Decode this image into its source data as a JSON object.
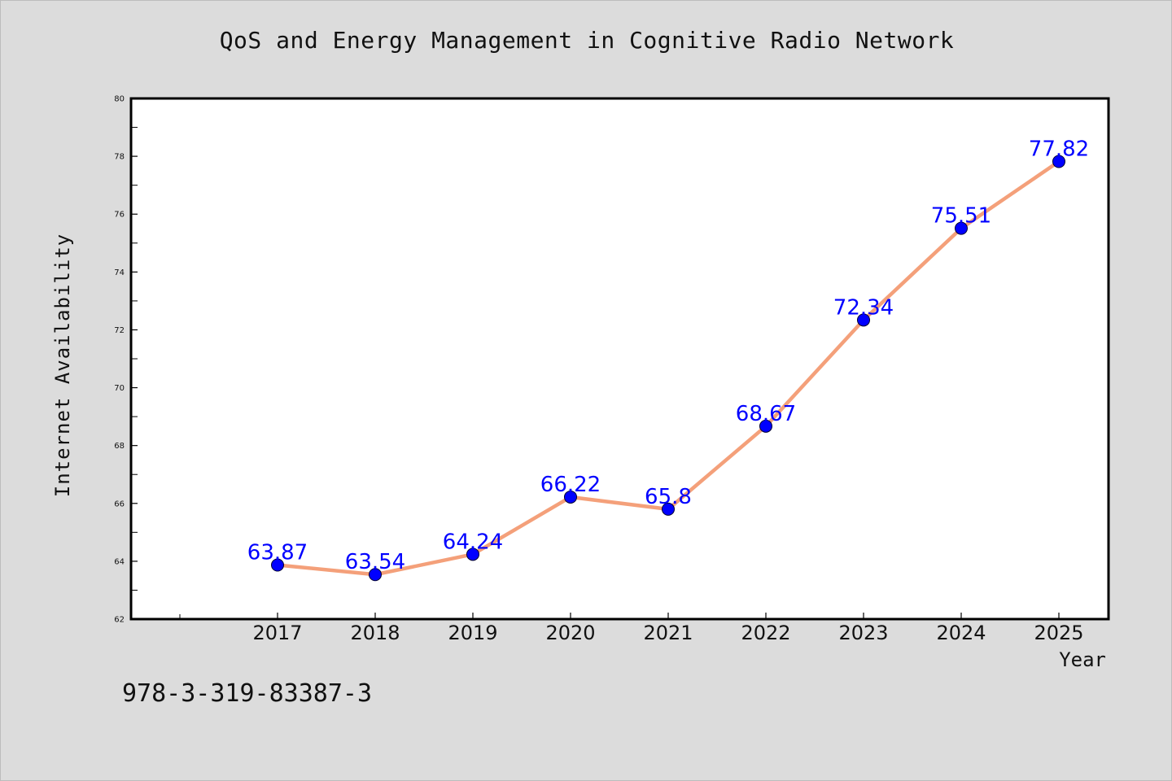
{
  "chart_data": {
    "type": "line",
    "title": "QoS and Energy Management in Cognitive Radio Network",
    "xlabel": "Year",
    "ylabel": "Internet Availability",
    "categories": [
      "2017",
      "2018",
      "2019",
      "2020",
      "2021",
      "2022",
      "2023",
      "2024",
      "2025"
    ],
    "series": [
      {
        "values": [
          63.87,
          63.54,
          64.24,
          66.22,
          65.8,
          68.67,
          72.34,
          75.51,
          77.82
        ],
        "data_labels": [
          "63.87",
          "63.54",
          "64.24",
          "66.22",
          "65.8",
          "68.67",
          "72.34",
          "75.51",
          "77.82"
        ]
      }
    ],
    "ylim": [
      62,
      80
    ],
    "yticks": [
      "62",
      "64",
      "66",
      "68",
      "70",
      "72",
      "74",
      "76",
      "78",
      "80"
    ],
    "grid": false,
    "legend": "none",
    "colors": {
      "line": "#f4a07a",
      "marker": "#0000ff",
      "label": "#0000ff",
      "background": "#dcdcdc",
      "plot_background": "#ffffff"
    }
  },
  "footer": {
    "isbn": "978-3-319-83387-3"
  }
}
